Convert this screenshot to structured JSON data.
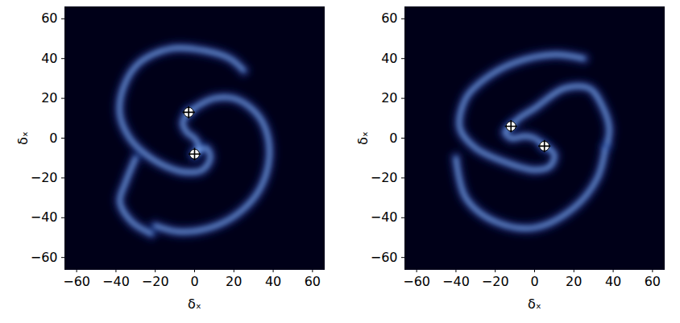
{
  "chart_data": [
    {
      "type": "density_map",
      "x_label": "δₓ",
      "y_label": "δₓ",
      "xlim": [
        -66,
        66
      ],
      "ylim": [
        -66,
        66
      ],
      "xticks": [
        -60,
        -40,
        -20,
        0,
        20,
        40,
        60
      ],
      "yticks": [
        -60,
        -40,
        -20,
        0,
        20,
        40,
        60
      ],
      "color": "#3f6fd8",
      "sinks": {
        "x": [
          -3,
          0
        ],
        "y": [
          13,
          -8
        ],
        "marker": "plus"
      },
      "arms": [
        {
          "x": [
            -3,
            -6,
            -4,
            0,
            2,
            0
          ],
          "y": [
            13,
            8,
            3,
            0,
            -4,
            -8
          ]
        },
        {
          "x": [
            -3,
            3,
            10,
            20,
            30,
            36,
            38,
            33,
            22,
            8,
            -8,
            -20
          ],
          "y": [
            13,
            17,
            20,
            20,
            14,
            5,
            -10,
            -26,
            -38,
            -45,
            -47,
            -44
          ]
        },
        {
          "x": [
            0,
            6,
            8,
            4,
            -5,
            -15,
            -25,
            -33,
            -38,
            -36,
            -28,
            -12,
            5,
            18,
            25
          ],
          "y": [
            -8,
            -5,
            -10,
            -16,
            -17,
            -14,
            -8,
            0,
            12,
            26,
            38,
            45,
            44,
            40,
            34
          ]
        },
        {
          "x": [
            -30,
            -35,
            -38,
            -32,
            -22
          ],
          "y": [
            -10,
            -22,
            -32,
            -42,
            -48
          ]
        }
      ]
    },
    {
      "type": "density_map",
      "x_label": "δₓ",
      "y_label": "δₓ",
      "xlim": [
        -66,
        66
      ],
      "ylim": [
        -66,
        66
      ],
      "xticks": [
        -60,
        -40,
        -20,
        0,
        20,
        40,
        60
      ],
      "yticks": [
        -60,
        -40,
        -20,
        0,
        20,
        40,
        60
      ],
      "color": "#3f6fd8",
      "sinks": {
        "x": [
          -12,
          5
        ],
        "y": [
          6,
          -4
        ],
        "marker": "plus"
      },
      "arms": [
        {
          "x": [
            -12,
            -15,
            -12,
            -5,
            0,
            5
          ],
          "y": [
            6,
            3,
            0,
            1,
            0,
            -4
          ]
        },
        {
          "x": [
            -12,
            -8,
            0,
            15,
            28,
            35,
            38,
            37
          ],
          "y": [
            6,
            10,
            15,
            25,
            25,
            15,
            5,
            -3
          ]
        },
        {
          "x": [
            5,
            10,
            8,
            0,
            -15,
            -30,
            -38,
            -35,
            -25,
            -10,
            10,
            25
          ],
          "y": [
            -4,
            -8,
            -14,
            -16,
            -12,
            -5,
            5,
            20,
            30,
            38,
            42,
            40
          ]
        },
        {
          "x": [
            -40,
            -35,
            -20,
            0,
            20,
            32,
            36
          ],
          "y": [
            -10,
            -30,
            -42,
            -45,
            -35,
            -20,
            -5
          ]
        }
      ]
    }
  ]
}
